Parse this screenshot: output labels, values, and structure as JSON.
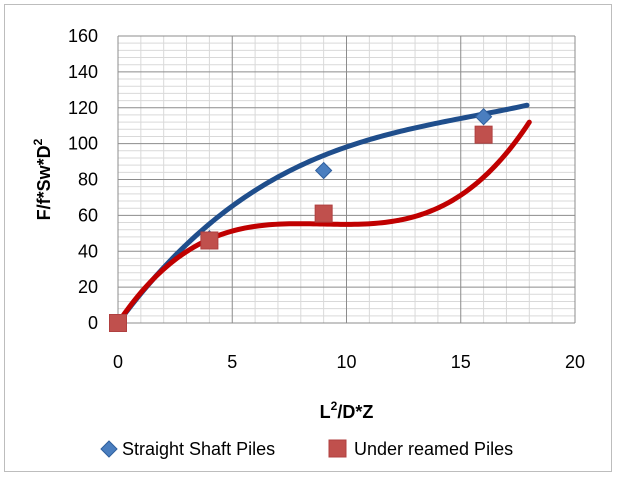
{
  "chart_data": {
    "type": "scatter",
    "title": "",
    "xlabel": "L2/D*Z",
    "xlabel_main": "L",
    "xlabel_sup": "2",
    "xlabel_rest": "/D*Z",
    "ylabel": "F/f*Sw*D2",
    "ylabel_main": "F/f*Sw*D",
    "ylabel_sup": "2",
    "xlim": [
      0,
      20
    ],
    "ylim": [
      0,
      160
    ],
    "x_major_ticks": [
      0,
      5,
      10,
      15,
      20
    ],
    "x_minor_step": 1,
    "y_major_ticks": [
      0,
      20,
      40,
      60,
      80,
      100,
      120,
      140,
      160
    ],
    "y_minor_step": 4,
    "grid": true,
    "legend_position": "bottom",
    "series": [
      {
        "name": "Straight Shaft Piles",
        "marker": "diamond",
        "color": "#4a7ebf",
        "trend_color": "#1f4e8c",
        "points": [
          {
            "x": 0,
            "y": 0
          },
          {
            "x": 4,
            "y": 47
          },
          {
            "x": 9,
            "y": 85
          },
          {
            "x": 16,
            "y": 115
          }
        ],
        "trendline": {
          "type": "polynomial",
          "x_range": [
            0,
            17.9
          ],
          "coefficients": [
            0.0202,
            -0.9475,
            17.27,
            0
          ]
        }
      },
      {
        "name": "Under reamed Piles",
        "marker": "square",
        "color": "#c0504d",
        "trend_color": "#c00000",
        "points": [
          {
            "x": 0,
            "y": 0
          },
          {
            "x": 4,
            "y": 46
          },
          {
            "x": 9,
            "y": 61
          },
          {
            "x": 16,
            "y": 105
          }
        ],
        "trendline": {
          "type": "polynomial",
          "x_range": [
            0,
            18
          ],
          "coefficients": [
            0.08,
            -2.15,
            19.0,
            0
          ]
        }
      }
    ]
  }
}
